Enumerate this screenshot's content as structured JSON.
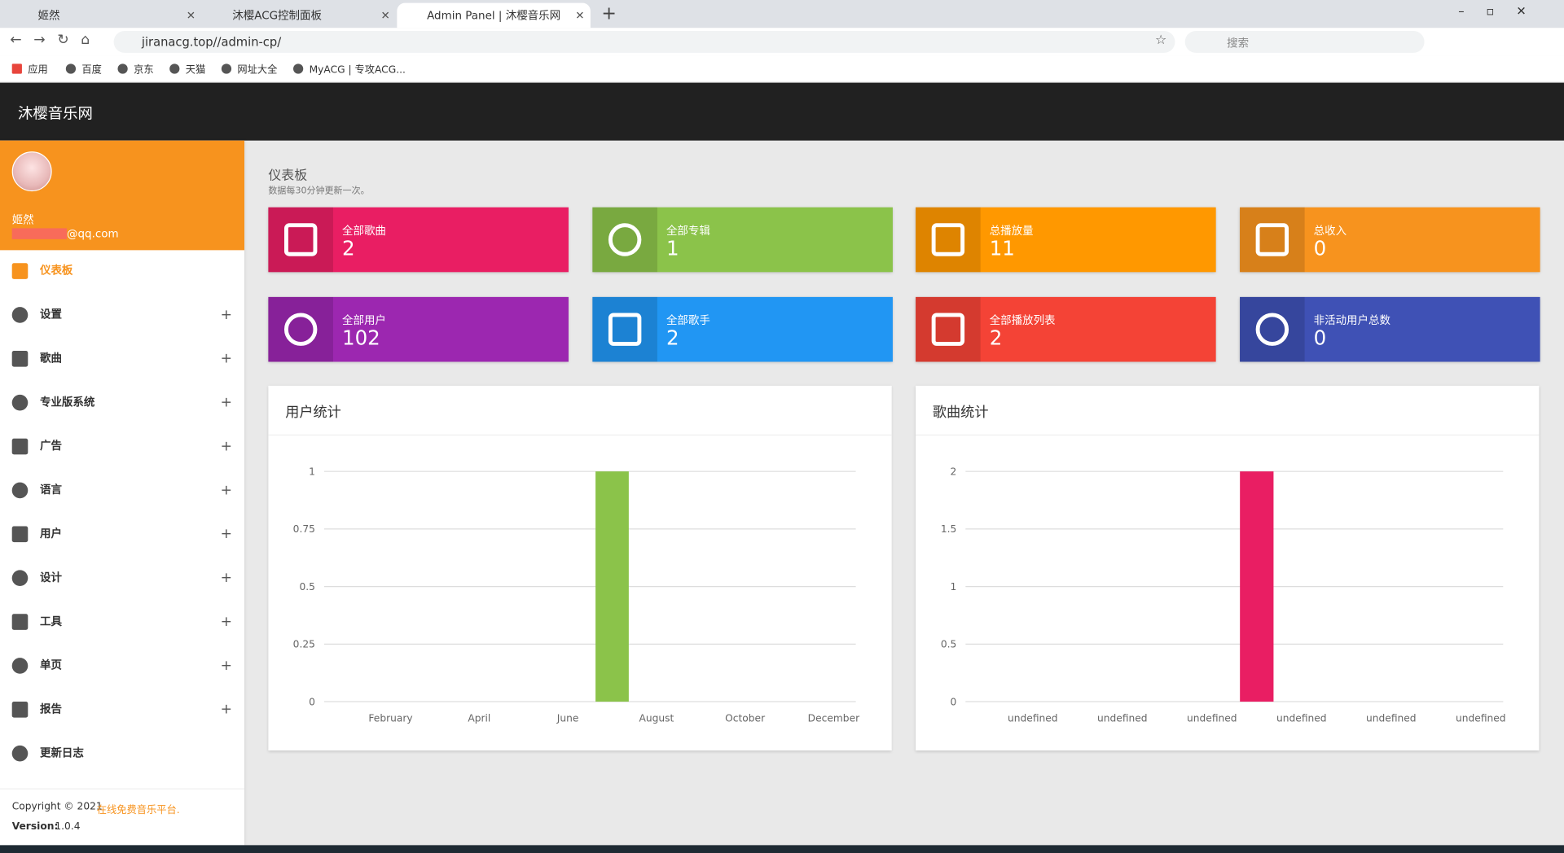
{
  "browser": {
    "tabs": [
      "姬然",
      "沐樱ACG控制面板",
      "Admin Panel | 沐樱音乐网"
    ],
    "url": "jiranacg.top//admin-cp/",
    "search_placeholder": "搜索",
    "bookmarks": [
      "应用",
      "百度",
      "京东",
      "天猫",
      "网址大全",
      "MyACG | 专攻ACG..."
    ]
  },
  "header": {
    "brand": "沐樱音乐网"
  },
  "user": {
    "name": "姬然",
    "email": "@qq.com"
  },
  "menu": [
    "仪表板",
    "设置",
    "歌曲",
    "专业版系统",
    "广告",
    "语言",
    "用户",
    "设计",
    "工具",
    "单页",
    "报告",
    "更新日志"
  ],
  "footer": {
    "copyright": "Copyright © 2021",
    "link": "在线免费音乐平台.",
    "version_label": "Version:",
    "version": "1.0.4"
  },
  "page": {
    "title": "仪表板",
    "subtitle": "数据每30分钟更新一次。"
  },
  "cards": [
    {
      "label": "全部歌曲",
      "value": "2",
      "color": "#e91e63"
    },
    {
      "label": "全部专辑",
      "value": "1",
      "color": "#8bc34a"
    },
    {
      "label": "总播放量",
      "value": "11",
      "color": "#ff9800"
    },
    {
      "label": "总收入",
      "value": "0",
      "color": "#f7931e"
    },
    {
      "label": "全部用户",
      "value": "102",
      "color": "#9c27b0"
    },
    {
      "label": "全部歌手",
      "value": "2",
      "color": "#2196f3"
    },
    {
      "label": "全部播放列表",
      "value": "2",
      "color": "#f44336"
    },
    {
      "label": "非活动用户总数",
      "value": "0",
      "color": "#3f51b5"
    }
  ],
  "chart_data": [
    {
      "type": "bar",
      "title": "用户统计",
      "color": "#8bc34a",
      "categories": [
        null,
        "February",
        null,
        "April",
        null,
        "June",
        null,
        "August",
        null,
        "October",
        null,
        "December"
      ],
      "values": [
        0,
        0,
        0,
        0,
        0,
        0,
        1,
        0,
        0,
        0,
        0,
        0
      ],
      "ylim": [
        0,
        1
      ],
      "yticks": [
        0,
        0.25,
        0.5,
        0.75,
        1
      ],
      "grid": true
    },
    {
      "type": "bar",
      "title": "歌曲统计",
      "color": "#e91e63",
      "categories": [
        null,
        "undefined",
        null,
        "undefined",
        null,
        "undefined",
        null,
        "undefined",
        null,
        "undefined",
        null,
        "undefined"
      ],
      "values": [
        0,
        0,
        0,
        0,
        0,
        0,
        2,
        0,
        0,
        0,
        0,
        0
      ],
      "ylim": [
        0,
        2
      ],
      "yticks": [
        0,
        0.5,
        1,
        1.5,
        2
      ],
      "grid": true
    }
  ]
}
